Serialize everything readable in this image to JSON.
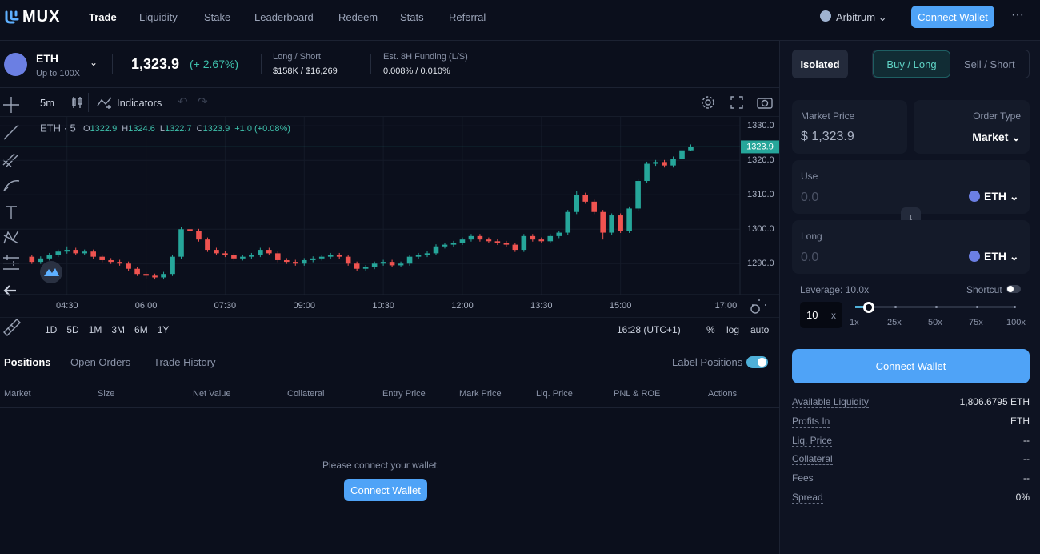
{
  "nav": {
    "logo": "MUX",
    "links": [
      "Trade",
      "Liquidity",
      "Stake",
      "Leaderboard",
      "Redeem",
      "Stats",
      "Referral"
    ],
    "network": "Arbitrum",
    "connect": "Connect Wallet"
  },
  "market": {
    "symbol": "ETH",
    "sub": "Up to 100X",
    "price": "1,323.9",
    "change": "(+ 2.67%)",
    "long_short_label": "Long / Short",
    "long_short_value": "$158K / $16,269",
    "funding_label": "Est. 8H Funding (L/S)",
    "funding_value": "0.008% / 0.010%"
  },
  "toolbar": {
    "interval": "5m",
    "indicators": "Indicators"
  },
  "chart_data": {
    "type": "candlestick",
    "symbol": "ETH · 5",
    "ohlc_labels": [
      "O",
      "H",
      "L",
      "C"
    ],
    "change": "+1.0 (+0.08%)",
    "up_color": "#26a69a",
    "down_color": "#ef5350",
    "x": [
      "03:50",
      "04:00",
      "04:10",
      "04:20",
      "04:30",
      "04:40",
      "04:50",
      "05:00",
      "05:10",
      "05:20",
      "05:30",
      "05:40",
      "05:50",
      "06:00",
      "06:10",
      "06:20",
      "06:30",
      "06:40",
      "06:50",
      "07:00",
      "07:10",
      "07:20",
      "07:30",
      "07:40",
      "07:50",
      "08:00",
      "08:10",
      "08:20",
      "08:30",
      "08:40",
      "08:50",
      "09:00",
      "09:10",
      "09:20",
      "09:30",
      "09:40",
      "09:50",
      "10:00",
      "10:10",
      "10:20",
      "10:30",
      "10:40",
      "10:50",
      "11:00",
      "11:10",
      "11:20",
      "11:30",
      "11:40",
      "11:50",
      "12:00",
      "12:10",
      "12:20",
      "12:30",
      "12:40",
      "12:50",
      "13:00",
      "13:10",
      "13:20",
      "13:30",
      "13:40",
      "13:50",
      "14:00",
      "14:10",
      "14:20",
      "14:30",
      "14:40",
      "14:50",
      "15:00",
      "15:10",
      "15:20",
      "15:30",
      "15:40",
      "15:50",
      "16:00",
      "16:10",
      "16:20"
    ],
    "open": [
      1292,
      1290.5,
      1291.5,
      1292.5,
      1293.5,
      1294,
      1293,
      1293.5,
      1292,
      1291,
      1290.5,
      1290,
      1288.5,
      1287,
      1286.5,
      1286,
      1287,
      1292,
      1300,
      1299.5,
      1297,
      1294,
      1293,
      1292.5,
      1291.5,
      1292,
      1292.5,
      1294,
      1293,
      1291,
      1290.5,
      1290,
      1291,
      1291.5,
      1292,
      1292.5,
      1292,
      1290,
      1288.5,
      1289,
      1290,
      1290.5,
      1289.5,
      1290,
      1292,
      1292.5,
      1293,
      1295,
      1295.5,
      1296,
      1297,
      1298,
      1297,
      1296.5,
      1296,
      1295.5,
      1294,
      1298,
      1297,
      1296.5,
      1298,
      1299,
      1305,
      1310,
      1308,
      1305,
      1299,
      1304,
      1299.5,
      1306,
      1314,
      1319,
      1319.5,
      1318.5,
      1320.5,
      1322.9
    ],
    "high": [
      1292.6,
      1292.1,
      1293.1,
      1294.1,
      1295,
      1294.6,
      1294.1,
      1294.1,
      1292.6,
      1291.6,
      1291.1,
      1290.6,
      1289.1,
      1287.6,
      1287.1,
      1287.6,
      1292.6,
      1300.6,
      1302,
      1300.1,
      1297.6,
      1294.6,
      1293.6,
      1293.1,
      1292.6,
      1293.1,
      1294.6,
      1294.6,
      1293.6,
      1291.6,
      1291.1,
      1291.6,
      1292.1,
      1292.6,
      1293.1,
      1293.1,
      1292.6,
      1290.6,
      1289.6,
      1290.6,
      1291.1,
      1291.1,
      1290.6,
      1292.6,
      1293.1,
      1293.6,
      1295.6,
      1296.1,
      1296.6,
      1297.6,
      1298.6,
      1298.6,
      1297.6,
      1297.1,
      1296.6,
      1296.1,
      1298.6,
      1298.6,
      1297.6,
      1298.6,
      1299.6,
      1305.6,
      1311,
      1310.6,
      1308.6,
      1305.6,
      1304.6,
      1304.6,
      1306.6,
      1314.6,
      1319.6,
      1320.1,
      1320.1,
      1321.1,
      1326,
      1324.6
    ],
    "low": [
      1289.9,
      1289.9,
      1290.9,
      1291.9,
      1292.9,
      1292.4,
      1292.4,
      1291.4,
      1290.4,
      1289.9,
      1289.4,
      1287.9,
      1286.4,
      1285.4,
      1285.4,
      1285.4,
      1286.4,
      1291.4,
      1298.9,
      1296.4,
      1293.4,
      1292.4,
      1291.9,
      1290.9,
      1290.9,
      1291.4,
      1291.9,
      1292.4,
      1290.4,
      1289.9,
      1289.4,
      1289.4,
      1290.4,
      1290.9,
      1291.4,
      1291.4,
      1289.4,
      1287.9,
      1287.9,
      1288.4,
      1289.4,
      1288.9,
      1288.9,
      1289.4,
      1291.4,
      1291.9,
      1292.4,
      1294.4,
      1294.9,
      1295.4,
      1296.4,
      1296.4,
      1295.9,
      1295.4,
      1294.9,
      1293.4,
      1293.4,
      1296.4,
      1295.9,
      1295.9,
      1297.4,
      1298.4,
      1304.4,
      1307.4,
      1304.4,
      1297,
      1298.4,
      1298.9,
      1298.9,
      1305.4,
      1313.4,
      1318.4,
      1317.9,
      1317.9,
      1319.9,
      1322.7
    ],
    "close": [
      1290.5,
      1291.5,
      1292.5,
      1293.5,
      1294,
      1293,
      1293.5,
      1292,
      1291,
      1290.5,
      1290,
      1288.5,
      1287,
      1286.5,
      1286,
      1287,
      1292,
      1300,
      1299.5,
      1297,
      1294,
      1293,
      1292.5,
      1291.5,
      1292,
      1292.5,
      1294,
      1293,
      1291,
      1290.5,
      1290,
      1291,
      1291.5,
      1292,
      1292.5,
      1292,
      1290,
      1288.5,
      1289,
      1290,
      1290.5,
      1289.5,
      1290,
      1292,
      1292.5,
      1293,
      1295,
      1295.5,
      1296,
      1297,
      1298,
      1297,
      1296.5,
      1296,
      1295.5,
      1294,
      1298,
      1297,
      1296.5,
      1298,
      1299,
      1305,
      1310,
      1308,
      1305,
      1299,
      1304,
      1299.5,
      1306,
      1314,
      1319,
      1319.5,
      1318.5,
      1320.5,
      1322.9,
      1323.9
    ],
    "xlim": [
      "03:52",
      "17:16"
    ],
    "xticks": [
      "04:30",
      "06:00",
      "07:30",
      "09:00",
      "10:30",
      "12:00",
      "13:30",
      "15:00",
      "17:00"
    ],
    "ylim": [
      1281,
      1332.6
    ],
    "yticks": [
      {
        "value": 1290,
        "label": "1290.0"
      },
      {
        "value": 1300,
        "label": "1300.0"
      },
      {
        "value": 1310,
        "label": "1310.0"
      },
      {
        "value": 1320,
        "label": "1320.0"
      },
      {
        "value": 1330,
        "label": "1330.0"
      }
    ],
    "price_line": 1323.9,
    "grid": true
  },
  "chart_footer": {
    "ranges": [
      "1D",
      "5D",
      "1M",
      "3M",
      "6M",
      "1Y"
    ],
    "time": "16:28 (UTC+1)",
    "scales": [
      "%",
      "log",
      "auto"
    ]
  },
  "positions": {
    "tabs": [
      "Positions",
      "Open Orders",
      "Trade History"
    ],
    "label_positions": "Label Positions",
    "columns": [
      "Market",
      "Size",
      "Net Value",
      "Collateral",
      "Entry Price",
      "Mark Price",
      "Liq. Price",
      "PNL & ROE",
      "Actions"
    ],
    "empty": "Please connect your wallet.",
    "connect": "Connect Wallet"
  },
  "order": {
    "margin_mode": "Isolated",
    "buy": "Buy / Long",
    "sell": "Sell / Short",
    "market_price_label": "Market Price",
    "market_price": "$ 1,323.9",
    "order_type_label": "Order Type",
    "order_type": "Market",
    "use_label": "Use",
    "use_value": "0.0",
    "use_token": "ETH",
    "long_label": "Long",
    "long_value": "0.0",
    "long_token": "ETH",
    "leverage_label": "Leverage: 10.0x",
    "shortcut": "Shortcut",
    "leverage_input": "10",
    "leverage_unit": "x",
    "slider_labels": [
      "1x",
      "25x",
      "50x",
      "75x",
      "100x"
    ],
    "connect": "Connect Wallet",
    "info": [
      [
        "Available Liquidity",
        "1,806.6795 ETH"
      ],
      [
        "Profits In",
        "ETH"
      ],
      [
        "Liq. Price",
        "--"
      ],
      [
        "Collateral",
        "--"
      ],
      [
        "Fees",
        "--"
      ],
      [
        "Spread",
        "0%"
      ]
    ]
  }
}
